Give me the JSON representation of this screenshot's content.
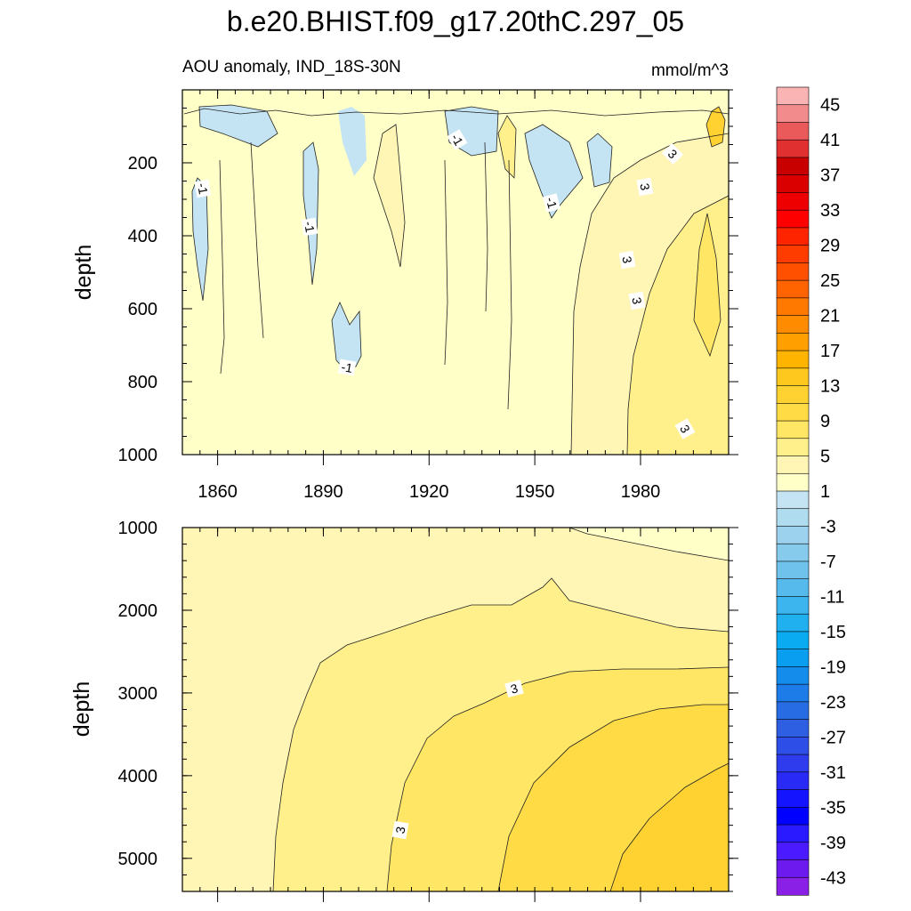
{
  "chart_data": {
    "type": "contour",
    "title": "b.e20.BHIST.f09_g17.20thC.297_05",
    "subtitle_left": "AOU anomaly, IND_18S-30N",
    "subtitle_right": "mmol/m^3",
    "xlabel": "",
    "ylabel": "depth",
    "x_range": [
      1850,
      2005
    ],
    "x_ticks": [
      "1860",
      "1890",
      "1920",
      "1950",
      "1980"
    ],
    "panels": [
      {
        "name": "upper",
        "y_range": [
          0,
          1000
        ],
        "y_ticks": [
          "200",
          "400",
          "600",
          "800",
          "1000"
        ],
        "contour_labels": [
          "-1",
          "-1",
          "-1",
          "-1",
          "-1",
          "3",
          "3",
          "3",
          "3",
          "3"
        ]
      },
      {
        "name": "lower",
        "y_range": [
          1000,
          5400
        ],
        "y_ticks": [
          "1000",
          "2000",
          "3000",
          "4000",
          "5000"
        ],
        "contour_labels": [
          "3",
          "3"
        ]
      }
    ],
    "colorbar": {
      "labels": [
        "45",
        "41",
        "37",
        "33",
        "29",
        "25",
        "21",
        "17",
        "13",
        "9",
        "5",
        "1",
        "-3",
        "-7",
        "-11",
        "-15",
        "-19",
        "-23",
        "-27",
        "-31",
        "-35",
        "-39",
        "-43"
      ],
      "colors": [
        "#fbb4b4",
        "#f28c8c",
        "#ea5a5a",
        "#e03030",
        "#c80000",
        "#da0000",
        "#ee0000",
        "#ff0000",
        "#ff2400",
        "#ff3c00",
        "#ff5000",
        "#ff6400",
        "#ff7800",
        "#ff8c00",
        "#ffa000",
        "#ffb400",
        "#ffc81e",
        "#ffd232",
        "#ffdc46",
        "#ffe664",
        "#fff08c",
        "#fff5b4",
        "#ffffc8",
        "#c4e4f4",
        "#b0dcf0",
        "#9cd2ee",
        "#86caec",
        "#6ec2ec",
        "#56bbec",
        "#3cb4ee",
        "#20b0f0",
        "#0aabf0",
        "#0a9ef0",
        "#148cec",
        "#1e7ce8",
        "#286ce4",
        "#2e5ee2",
        "#2e4ee8",
        "#2e3cee",
        "#2a2af6",
        "#1414ff",
        "#0000ff",
        "#2a1aff",
        "#4c1aff",
        "#6c1aee",
        "#8a20e6"
      ]
    }
  }
}
